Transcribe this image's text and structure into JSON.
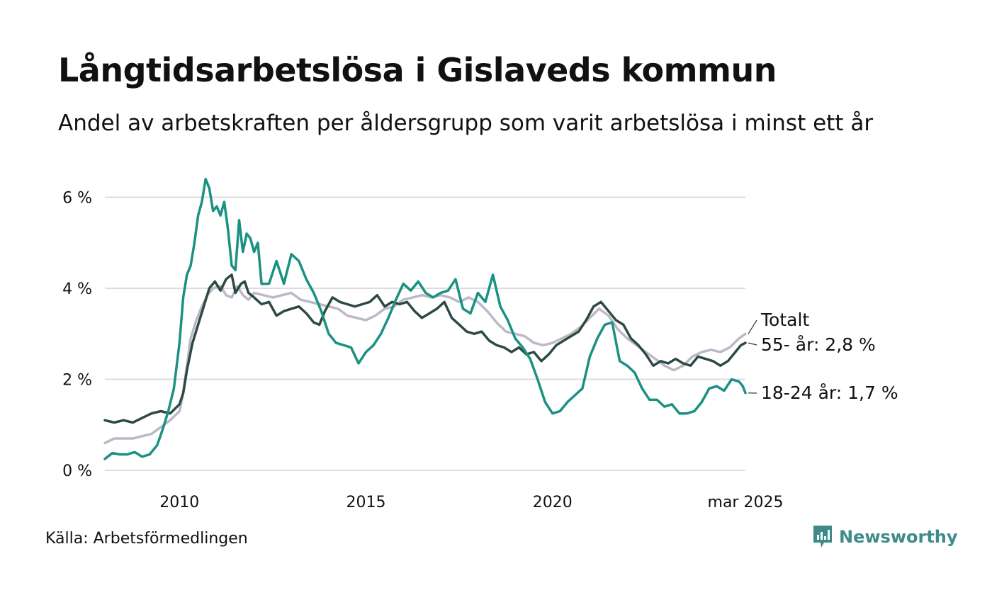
{
  "header": {
    "title": "Långtidsarbetslösa i Gislaveds kommun",
    "subtitle": "Andel av arbetskraften per åldersgrupp som varit arbetslösa i minst ett år"
  },
  "footer": {
    "source": "Källa: Arbetsförmedlingen",
    "brand": "Newsworthy"
  },
  "chart_data": {
    "type": "line",
    "ylim": [
      0,
      6.6
    ],
    "xlim": [
      2008.0,
      2025.17
    ],
    "y_ticks": [
      {
        "value": 0,
        "label": "0 %"
      },
      {
        "value": 2,
        "label": "2 %"
      },
      {
        "value": 4,
        "label": "4 %"
      },
      {
        "value": 6,
        "label": "6 %"
      }
    ],
    "x_ticks": [
      {
        "value": 2010,
        "label": "2010"
      },
      {
        "value": 2015,
        "label": "2015"
      },
      {
        "value": 2020,
        "label": "2020"
      },
      {
        "value": 2025.17,
        "label": "mar 2025"
      }
    ],
    "grid": true,
    "series": [
      {
        "key": "total",
        "name": "Totalt",
        "end_label": "Totalt",
        "color": "#bdb8c6",
        "points": [
          [
            2008.0,
            0.6
          ],
          [
            2008.25,
            0.7
          ],
          [
            2008.5,
            0.7
          ],
          [
            2008.75,
            0.7
          ],
          [
            2009.0,
            0.75
          ],
          [
            2009.25,
            0.8
          ],
          [
            2009.5,
            0.95
          ],
          [
            2009.75,
            1.1
          ],
          [
            2010.0,
            1.3
          ],
          [
            2010.08,
            1.6
          ],
          [
            2010.2,
            2.3
          ],
          [
            2010.3,
            2.9
          ],
          [
            2010.45,
            3.3
          ],
          [
            2010.6,
            3.6
          ],
          [
            2010.75,
            3.85
          ],
          [
            2010.9,
            4.0
          ],
          [
            2011.1,
            4.05
          ],
          [
            2011.25,
            3.85
          ],
          [
            2011.4,
            3.8
          ],
          [
            2011.55,
            4.05
          ],
          [
            2011.7,
            3.85
          ],
          [
            2011.85,
            3.75
          ],
          [
            2012.0,
            3.9
          ],
          [
            2012.25,
            3.85
          ],
          [
            2012.5,
            3.8
          ],
          [
            2012.75,
            3.85
          ],
          [
            2013.0,
            3.9
          ],
          [
            2013.25,
            3.75
          ],
          [
            2013.5,
            3.7
          ],
          [
            2013.75,
            3.65
          ],
          [
            2014.0,
            3.6
          ],
          [
            2014.25,
            3.55
          ],
          [
            2014.5,
            3.4
          ],
          [
            2014.75,
            3.35
          ],
          [
            2015.0,
            3.3
          ],
          [
            2015.25,
            3.4
          ],
          [
            2015.5,
            3.55
          ],
          [
            2015.75,
            3.6
          ],
          [
            2016.0,
            3.75
          ],
          [
            2016.25,
            3.8
          ],
          [
            2016.5,
            3.85
          ],
          [
            2016.75,
            3.8
          ],
          [
            2017.0,
            3.85
          ],
          [
            2017.25,
            3.8
          ],
          [
            2017.5,
            3.7
          ],
          [
            2017.75,
            3.8
          ],
          [
            2018.0,
            3.7
          ],
          [
            2018.25,
            3.5
          ],
          [
            2018.5,
            3.25
          ],
          [
            2018.75,
            3.05
          ],
          [
            2019.0,
            3.0
          ],
          [
            2019.25,
            2.95
          ],
          [
            2019.5,
            2.8
          ],
          [
            2019.75,
            2.75
          ],
          [
            2020.0,
            2.8
          ],
          [
            2020.25,
            2.9
          ],
          [
            2020.5,
            3.0
          ],
          [
            2020.75,
            3.15
          ],
          [
            2021.0,
            3.35
          ],
          [
            2021.25,
            3.55
          ],
          [
            2021.5,
            3.4
          ],
          [
            2021.75,
            3.1
          ],
          [
            2022.0,
            2.9
          ],
          [
            2022.25,
            2.75
          ],
          [
            2022.5,
            2.6
          ],
          [
            2022.75,
            2.45
          ],
          [
            2023.0,
            2.3
          ],
          [
            2023.25,
            2.2
          ],
          [
            2023.5,
            2.3
          ],
          [
            2023.75,
            2.5
          ],
          [
            2024.0,
            2.6
          ],
          [
            2024.25,
            2.65
          ],
          [
            2024.5,
            2.6
          ],
          [
            2024.75,
            2.7
          ],
          [
            2025.0,
            2.9
          ],
          [
            2025.17,
            3.0
          ]
        ]
      },
      {
        "key": "age55",
        "name": "55- år",
        "end_label": "55- år: 2,8 %",
        "color": "#2c4a43",
        "points": [
          [
            2008.0,
            1.1
          ],
          [
            2008.25,
            1.05
          ],
          [
            2008.5,
            1.1
          ],
          [
            2008.75,
            1.05
          ],
          [
            2009.0,
            1.15
          ],
          [
            2009.25,
            1.25
          ],
          [
            2009.5,
            1.3
          ],
          [
            2009.75,
            1.25
          ],
          [
            2010.0,
            1.45
          ],
          [
            2010.1,
            1.7
          ],
          [
            2010.2,
            2.2
          ],
          [
            2010.35,
            2.8
          ],
          [
            2010.5,
            3.2
          ],
          [
            2010.65,
            3.6
          ],
          [
            2010.8,
            4.0
          ],
          [
            2010.95,
            4.15
          ],
          [
            2011.1,
            3.95
          ],
          [
            2011.25,
            4.2
          ],
          [
            2011.4,
            4.3
          ],
          [
            2011.5,
            3.9
          ],
          [
            2011.65,
            4.1
          ],
          [
            2011.75,
            4.15
          ],
          [
            2011.85,
            3.9
          ],
          [
            2012.0,
            3.8
          ],
          [
            2012.2,
            3.65
          ],
          [
            2012.4,
            3.7
          ],
          [
            2012.6,
            3.4
          ],
          [
            2012.8,
            3.5
          ],
          [
            2013.0,
            3.55
          ],
          [
            2013.2,
            3.6
          ],
          [
            2013.4,
            3.45
          ],
          [
            2013.6,
            3.25
          ],
          [
            2013.75,
            3.2
          ],
          [
            2013.9,
            3.5
          ],
          [
            2014.1,
            3.8
          ],
          [
            2014.3,
            3.7
          ],
          [
            2014.5,
            3.65
          ],
          [
            2014.7,
            3.6
          ],
          [
            2014.9,
            3.65
          ],
          [
            2015.1,
            3.7
          ],
          [
            2015.3,
            3.85
          ],
          [
            2015.5,
            3.6
          ],
          [
            2015.7,
            3.7
          ],
          [
            2015.9,
            3.65
          ],
          [
            2016.1,
            3.7
          ],
          [
            2016.3,
            3.5
          ],
          [
            2016.5,
            3.35
          ],
          [
            2016.7,
            3.45
          ],
          [
            2016.9,
            3.55
          ],
          [
            2017.1,
            3.7
          ],
          [
            2017.3,
            3.35
          ],
          [
            2017.5,
            3.2
          ],
          [
            2017.7,
            3.05
          ],
          [
            2017.9,
            3.0
          ],
          [
            2018.1,
            3.05
          ],
          [
            2018.3,
            2.85
          ],
          [
            2018.5,
            2.75
          ],
          [
            2018.7,
            2.7
          ],
          [
            2018.9,
            2.6
          ],
          [
            2019.1,
            2.7
          ],
          [
            2019.3,
            2.55
          ],
          [
            2019.5,
            2.6
          ],
          [
            2019.7,
            2.4
          ],
          [
            2019.9,
            2.55
          ],
          [
            2020.1,
            2.75
          ],
          [
            2020.3,
            2.85
          ],
          [
            2020.5,
            2.95
          ],
          [
            2020.7,
            3.05
          ],
          [
            2020.9,
            3.3
          ],
          [
            2021.1,
            3.6
          ],
          [
            2021.3,
            3.7
          ],
          [
            2021.5,
            3.5
          ],
          [
            2021.7,
            3.3
          ],
          [
            2021.9,
            3.2
          ],
          [
            2022.1,
            2.9
          ],
          [
            2022.3,
            2.75
          ],
          [
            2022.5,
            2.55
          ],
          [
            2022.7,
            2.3
          ],
          [
            2022.9,
            2.4
          ],
          [
            2023.1,
            2.35
          ],
          [
            2023.3,
            2.45
          ],
          [
            2023.5,
            2.35
          ],
          [
            2023.7,
            2.3
          ],
          [
            2023.9,
            2.5
          ],
          [
            2024.1,
            2.45
          ],
          [
            2024.3,
            2.4
          ],
          [
            2024.5,
            2.3
          ],
          [
            2024.7,
            2.4
          ],
          [
            2024.9,
            2.6
          ],
          [
            2025.05,
            2.75
          ],
          [
            2025.17,
            2.8
          ]
        ]
      },
      {
        "key": "age1824",
        "name": "18-24 år",
        "end_label": "18-24 år: 1,7 %",
        "color": "#1a9182",
        "points": [
          [
            2008.0,
            0.25
          ],
          [
            2008.2,
            0.38
          ],
          [
            2008.4,
            0.35
          ],
          [
            2008.6,
            0.35
          ],
          [
            2008.8,
            0.4
          ],
          [
            2009.0,
            0.3
          ],
          [
            2009.2,
            0.35
          ],
          [
            2009.4,
            0.55
          ],
          [
            2009.55,
            0.9
          ],
          [
            2009.7,
            1.3
          ],
          [
            2009.85,
            1.8
          ],
          [
            2010.0,
            2.8
          ],
          [
            2010.1,
            3.8
          ],
          [
            2010.2,
            4.3
          ],
          [
            2010.3,
            4.5
          ],
          [
            2010.4,
            5.0
          ],
          [
            2010.5,
            5.6
          ],
          [
            2010.6,
            5.9
          ],
          [
            2010.7,
            6.4
          ],
          [
            2010.8,
            6.2
          ],
          [
            2010.9,
            5.7
          ],
          [
            2011.0,
            5.8
          ],
          [
            2011.1,
            5.6
          ],
          [
            2011.2,
            5.9
          ],
          [
            2011.3,
            5.3
          ],
          [
            2011.4,
            4.5
          ],
          [
            2011.5,
            4.4
          ],
          [
            2011.6,
            5.5
          ],
          [
            2011.7,
            4.8
          ],
          [
            2011.8,
            5.2
          ],
          [
            2011.9,
            5.1
          ],
          [
            2012.0,
            4.8
          ],
          [
            2012.1,
            5.0
          ],
          [
            2012.2,
            4.1
          ],
          [
            2012.4,
            4.1
          ],
          [
            2012.6,
            4.6
          ],
          [
            2012.8,
            4.1
          ],
          [
            2013.0,
            4.75
          ],
          [
            2013.2,
            4.6
          ],
          [
            2013.4,
            4.2
          ],
          [
            2013.6,
            3.9
          ],
          [
            2013.8,
            3.5
          ],
          [
            2014.0,
            3.0
          ],
          [
            2014.2,
            2.8
          ],
          [
            2014.4,
            2.75
          ],
          [
            2014.6,
            2.7
          ],
          [
            2014.8,
            2.35
          ],
          [
            2015.0,
            2.6
          ],
          [
            2015.2,
            2.75
          ],
          [
            2015.4,
            3.0
          ],
          [
            2015.6,
            3.35
          ],
          [
            2015.8,
            3.75
          ],
          [
            2016.0,
            4.1
          ],
          [
            2016.2,
            3.95
          ],
          [
            2016.4,
            4.15
          ],
          [
            2016.6,
            3.9
          ],
          [
            2016.8,
            3.8
          ],
          [
            2017.0,
            3.9
          ],
          [
            2017.2,
            3.95
          ],
          [
            2017.4,
            4.2
          ],
          [
            2017.6,
            3.55
          ],
          [
            2017.8,
            3.45
          ],
          [
            2018.0,
            3.9
          ],
          [
            2018.2,
            3.7
          ],
          [
            2018.4,
            4.3
          ],
          [
            2018.6,
            3.6
          ],
          [
            2018.8,
            3.3
          ],
          [
            2019.0,
            2.9
          ],
          [
            2019.2,
            2.7
          ],
          [
            2019.4,
            2.45
          ],
          [
            2019.6,
            2.0
          ],
          [
            2019.8,
            1.5
          ],
          [
            2020.0,
            1.25
          ],
          [
            2020.2,
            1.3
          ],
          [
            2020.4,
            1.5
          ],
          [
            2020.6,
            1.65
          ],
          [
            2020.8,
            1.8
          ],
          [
            2021.0,
            2.5
          ],
          [
            2021.2,
            2.9
          ],
          [
            2021.4,
            3.2
          ],
          [
            2021.6,
            3.25
          ],
          [
            2021.8,
            2.4
          ],
          [
            2022.0,
            2.3
          ],
          [
            2022.2,
            2.15
          ],
          [
            2022.4,
            1.8
          ],
          [
            2022.6,
            1.55
          ],
          [
            2022.8,
            1.55
          ],
          [
            2023.0,
            1.4
          ],
          [
            2023.2,
            1.45
          ],
          [
            2023.4,
            1.25
          ],
          [
            2023.6,
            1.25
          ],
          [
            2023.8,
            1.3
          ],
          [
            2024.0,
            1.5
          ],
          [
            2024.2,
            1.8
          ],
          [
            2024.4,
            1.85
          ],
          [
            2024.6,
            1.75
          ],
          [
            2024.8,
            2.0
          ],
          [
            2025.0,
            1.95
          ],
          [
            2025.1,
            1.85
          ],
          [
            2025.17,
            1.7
          ]
        ]
      }
    ]
  }
}
